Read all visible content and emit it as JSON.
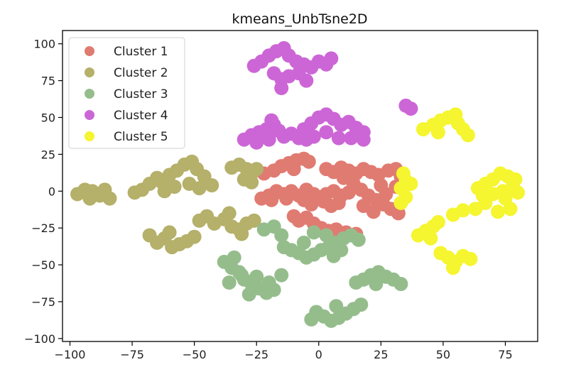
{
  "chart_data": {
    "type": "scatter",
    "title": "kmeans_UnbTsne2D",
    "xlabel": "",
    "ylabel": "",
    "xlim": [
      -103,
      88
    ],
    "ylim": [
      -102,
      109
    ],
    "xticks": [
      -100,
      -75,
      -50,
      -25,
      0,
      25,
      50,
      75
    ],
    "yticks": [
      -100,
      -75,
      -50,
      -25,
      0,
      25,
      50,
      75,
      100
    ],
    "xtick_labels": [
      "−100",
      "−75",
      "−50",
      "−25",
      "0",
      "25",
      "50",
      "75"
    ],
    "ytick_labels": [
      "−100",
      "−75",
      "−50",
      "−25",
      "0",
      "25",
      "50",
      "75",
      "100"
    ],
    "grid": false,
    "legend_position": "top-left",
    "series": [
      {
        "name": "Cluster 1",
        "color": "#e07b72",
        "points": [
          [
            -22,
            12
          ],
          [
            -18,
            14
          ],
          [
            -15,
            17
          ],
          [
            -12,
            19
          ],
          [
            -9,
            21
          ],
          [
            -6,
            22
          ],
          [
            -4,
            20
          ],
          [
            -10,
            15
          ],
          [
            -23,
            -5
          ],
          [
            -20,
            -3
          ],
          [
            -17,
            0
          ],
          [
            -14,
            -2
          ],
          [
            -11,
            0
          ],
          [
            -8,
            -3
          ],
          [
            -5,
            1
          ],
          [
            -2,
            -2
          ],
          [
            -19,
            -6
          ],
          [
            -13,
            -5
          ],
          [
            0,
            -4
          ],
          [
            3,
            -2
          ],
          [
            6,
            0
          ],
          [
            9,
            -3
          ],
          [
            12,
            -1
          ],
          [
            2,
            -7
          ],
          [
            -3,
            -9
          ],
          [
            -6,
            -6
          ],
          [
            5,
            -10
          ],
          [
            8,
            -8
          ],
          [
            3,
            15
          ],
          [
            6,
            13
          ],
          [
            9,
            16
          ],
          [
            12,
            14
          ],
          [
            15,
            12
          ],
          [
            18,
            15
          ],
          [
            21,
            13
          ],
          [
            24,
            11
          ],
          [
            28,
            14
          ],
          [
            31,
            15
          ],
          [
            33,
            10
          ],
          [
            10,
            9
          ],
          [
            14,
            5
          ],
          [
            17,
            1
          ],
          [
            20,
            -3
          ],
          [
            23,
            -6
          ],
          [
            26,
            -9
          ],
          [
            29,
            -12
          ],
          [
            32,
            -15
          ],
          [
            22,
            -14
          ],
          [
            18,
            -10
          ],
          [
            27,
            -2
          ],
          [
            31,
            3
          ],
          [
            25,
            4
          ],
          [
            -8,
            -20
          ],
          [
            -5,
            -18
          ],
          [
            -2,
            -22
          ],
          [
            1,
            -25
          ],
          [
            4,
            -27
          ],
          [
            7,
            -26
          ],
          [
            11,
            -28
          ],
          [
            15,
            -29
          ],
          [
            -10,
            -17
          ]
        ]
      },
      {
        "name": "Cluster 2",
        "color": "#b5b06a",
        "points": [
          [
            -97,
            -2
          ],
          [
            -94,
            1
          ],
          [
            -91,
            0
          ],
          [
            -88,
            -3
          ],
          [
            -86,
            1
          ],
          [
            -84,
            -5
          ],
          [
            -92,
            -5
          ],
          [
            -74,
            -1
          ],
          [
            -71,
            1
          ],
          [
            -68,
            5
          ],
          [
            -65,
            9
          ],
          [
            -63,
            6
          ],
          [
            -60,
            11
          ],
          [
            -57,
            14
          ],
          [
            -54,
            18
          ],
          [
            -51,
            20
          ],
          [
            -49,
            15
          ],
          [
            -46,
            10
          ],
          [
            -52,
            5
          ],
          [
            -48,
            2
          ],
          [
            -43,
            4
          ],
          [
            -58,
            3
          ],
          [
            -62,
            0
          ],
          [
            -35,
            16
          ],
          [
            -32,
            18
          ],
          [
            -29,
            15
          ],
          [
            -27,
            12
          ],
          [
            -25,
            15
          ],
          [
            -30,
            8
          ],
          [
            -27,
            6
          ],
          [
            -68,
            -30
          ],
          [
            -65,
            -35
          ],
          [
            -62,
            -32
          ],
          [
            -59,
            -38
          ],
          [
            -56,
            -36
          ],
          [
            -53,
            -34
          ],
          [
            -50,
            -31
          ],
          [
            -60,
            -28
          ],
          [
            -48,
            -20
          ],
          [
            -45,
            -17
          ],
          [
            -42,
            -22
          ],
          [
            -38,
            -19
          ],
          [
            -35,
            -24
          ],
          [
            -32,
            -26
          ],
          [
            -29,
            -22
          ],
          [
            -26,
            -20
          ],
          [
            -36,
            -15
          ],
          [
            -31,
            -29
          ]
        ]
      },
      {
        "name": "Cluster 3",
        "color": "#95bd8c",
        "points": [
          [
            -38,
            -48
          ],
          [
            -35,
            -52
          ],
          [
            -32,
            -55
          ],
          [
            -30,
            -60
          ],
          [
            -27,
            -63
          ],
          [
            -24,
            -66
          ],
          [
            -21,
            -69
          ],
          [
            -18,
            -67
          ],
          [
            -34,
            -45
          ],
          [
            -31,
            -57
          ],
          [
            -25,
            -58
          ],
          [
            -20,
            -62
          ],
          [
            -36,
            -62
          ],
          [
            -28,
            -70
          ],
          [
            -15,
            -57
          ],
          [
            -22,
            -26
          ],
          [
            -18,
            -24
          ],
          [
            -15,
            -30
          ],
          [
            -14,
            -38
          ],
          [
            -11,
            -40
          ],
          [
            -8,
            -42
          ],
          [
            -5,
            -45
          ],
          [
            -2,
            -43
          ],
          [
            1,
            -40
          ],
          [
            4,
            -38
          ],
          [
            7,
            -35
          ],
          [
            10,
            -32
          ],
          [
            13,
            -30
          ],
          [
            16,
            -33
          ],
          [
            3,
            -30
          ],
          [
            6,
            -44
          ],
          [
            -6,
            -35
          ],
          [
            9,
            -40
          ],
          [
            -2,
            -28
          ],
          [
            15,
            -62
          ],
          [
            18,
            -60
          ],
          [
            21,
            -57
          ],
          [
            24,
            -55
          ],
          [
            27,
            -58
          ],
          [
            30,
            -60
          ],
          [
            33,
            -63
          ],
          [
            23,
            -63
          ],
          [
            -1,
            -82
          ],
          [
            2,
            -85
          ],
          [
            5,
            -88
          ],
          [
            8,
            -86
          ],
          [
            11,
            -83
          ],
          [
            14,
            -80
          ],
          [
            17,
            -77
          ],
          [
            -3,
            -87
          ],
          [
            7,
            -78
          ]
        ]
      },
      {
        "name": "Cluster 4",
        "color": "#cc66d6",
        "points": [
          [
            -26,
            85
          ],
          [
            -23,
            88
          ],
          [
            -20,
            92
          ],
          [
            -17,
            95
          ],
          [
            -14,
            97
          ],
          [
            -12,
            92
          ],
          [
            -9,
            88
          ],
          [
            -6,
            86
          ],
          [
            -3,
            84
          ],
          [
            0,
            88
          ],
          [
            3,
            86
          ],
          [
            5,
            90
          ],
          [
            -18,
            80
          ],
          [
            -15,
            76
          ],
          [
            -12,
            78
          ],
          [
            -8,
            80
          ],
          [
            -5,
            75
          ],
          [
            -15,
            70
          ],
          [
            -30,
            35
          ],
          [
            -27,
            38
          ],
          [
            -24,
            40
          ],
          [
            -21,
            42
          ],
          [
            -18,
            45
          ],
          [
            -16,
            41
          ],
          [
            -14,
            37
          ],
          [
            -11,
            39
          ],
          [
            -8,
            36
          ],
          [
            -5,
            35
          ],
          [
            -25,
            33
          ],
          [
            -20,
            35
          ],
          [
            -19,
            48
          ],
          [
            -6,
            42
          ],
          [
            -3,
            46
          ],
          [
            0,
            50
          ],
          [
            3,
            52
          ],
          [
            6,
            49
          ],
          [
            9,
            45
          ],
          [
            12,
            47
          ],
          [
            15,
            43
          ],
          [
            18,
            40
          ],
          [
            3,
            40
          ],
          [
            8,
            36
          ],
          [
            13,
            36
          ],
          [
            18,
            35
          ],
          [
            -2,
            37
          ],
          [
            35,
            58
          ],
          [
            37,
            56
          ]
        ]
      },
      {
        "name": "Cluster 5",
        "color": "#f5f530",
        "points": [
          [
            42,
            42
          ],
          [
            46,
            45
          ],
          [
            49,
            48
          ],
          [
            52,
            50
          ],
          [
            55,
            52
          ],
          [
            56,
            46
          ],
          [
            58,
            42
          ],
          [
            60,
            38
          ],
          [
            48,
            40
          ],
          [
            34,
            12
          ],
          [
            35,
            7
          ],
          [
            33,
            2
          ],
          [
            35,
            -4
          ],
          [
            37,
            5
          ],
          [
            33,
            -8
          ],
          [
            64,
            2
          ],
          [
            67,
            5
          ],
          [
            70,
            8
          ],
          [
            73,
            12
          ],
          [
            76,
            10
          ],
          [
            79,
            8
          ],
          [
            78,
            3
          ],
          [
            80,
            -1
          ],
          [
            75,
            -5
          ],
          [
            70,
            -2
          ],
          [
            67,
            -8
          ],
          [
            72,
            -14
          ],
          [
            77,
            -12
          ],
          [
            63,
            -12
          ],
          [
            58,
            -13
          ],
          [
            54,
            -16
          ],
          [
            74,
            0
          ],
          [
            66,
            -3
          ],
          [
            40,
            -30
          ],
          [
            43,
            -27
          ],
          [
            46,
            -24
          ],
          [
            48,
            -21
          ],
          [
            45,
            -32
          ],
          [
            49,
            -42
          ],
          [
            52,
            -45
          ],
          [
            55,
            -48
          ],
          [
            58,
            -44
          ],
          [
            61,
            -46
          ],
          [
            54,
            -52
          ]
        ]
      }
    ]
  }
}
